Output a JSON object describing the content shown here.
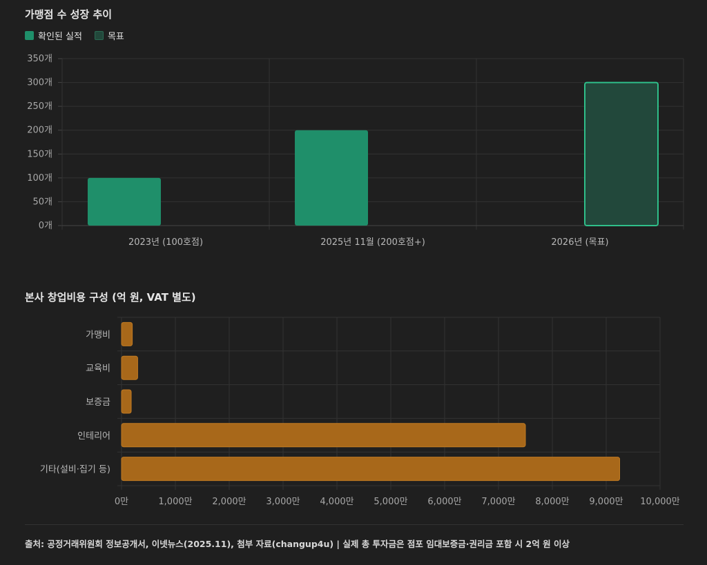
{
  "footer": "출처: 공정거래위원회 정보공개서, 이넷뉴스(2025.11), 첨부 자료(changup4u) | 실제 총 투자금은 점포 임대보증금·권리금 포함 시 2억 원 이상",
  "chart_data": [
    {
      "type": "bar",
      "title": "가맹점 수 성장 추이",
      "categories": [
        "2023년 (100호점)",
        "2025년 11월 (200호점+)",
        "2026년 (목표)"
      ],
      "series": [
        {
          "name": "확인된 실적",
          "values": [
            100,
            200,
            null
          ],
          "color": "#1f8f6a"
        },
        {
          "name": "목표",
          "values": [
            null,
            null,
            300
          ],
          "color": "#22483b",
          "border_color": "#2fbf8a"
        }
      ],
      "ylim": [
        0,
        350
      ],
      "y_ticks": [
        "0개",
        "50개",
        "100개",
        "150개",
        "200개",
        "250개",
        "300개",
        "350개"
      ],
      "y_tick_values": [
        0,
        50,
        100,
        150,
        200,
        250,
        300,
        350
      ],
      "legend_placement": "top-left",
      "grid": true
    },
    {
      "type": "bar",
      "orientation": "horizontal",
      "title": "본사 창업비용 구성 (억 원, VAT 별도)",
      "categories": [
        "가맹비",
        "교육비",
        "보증금",
        "인테리어",
        "기타(설비·집기 등)"
      ],
      "values": [
        200,
        300,
        180,
        7500,
        9250
      ],
      "color": "#a8681a",
      "xlim": [
        0,
        10000
      ],
      "x_ticks": [
        "0만",
        "1,000만",
        "2,000만",
        "3,000만",
        "4,000만",
        "5,000만",
        "6,000만",
        "7,000만",
        "8,000만",
        "9,000만",
        "10,000만"
      ],
      "x_tick_values": [
        0,
        1000,
        2000,
        3000,
        4000,
        5000,
        6000,
        7000,
        8000,
        9000,
        10000
      ],
      "grid": true
    }
  ]
}
